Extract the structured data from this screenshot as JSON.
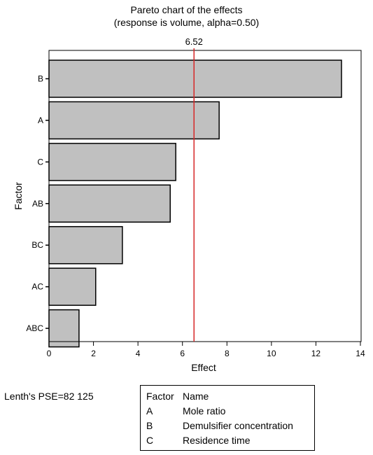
{
  "chart_data": {
    "type": "bar",
    "orientation": "horizontal",
    "title": "Pareto chart of the effects",
    "subtitle": "(response is volume, alpha=0.50)",
    "xlabel": "Effect",
    "ylabel": "Factor",
    "categories": [
      "B",
      "A",
      "C",
      "AB",
      "BC",
      "AC",
      "ABC"
    ],
    "values": [
      13.15,
      7.65,
      5.7,
      5.45,
      3.3,
      2.1,
      1.35
    ],
    "xlim": [
      0,
      14
    ],
    "xticks": [
      0,
      2,
      4,
      6,
      8,
      10,
      12,
      14
    ],
    "reference_line": {
      "value": 6.52,
      "label": "6.52",
      "color": "#d62728"
    },
    "bar_color": "#c0c0c0",
    "grid": false
  },
  "footer": {
    "lenth_pse": "Lenth's PSE=82 125"
  },
  "legend": {
    "header_factor": "Factor",
    "header_name": "Name",
    "rows": [
      {
        "factor": "A",
        "name": "Mole ratio"
      },
      {
        "factor": "B",
        "name": "Demulsifier concentration"
      },
      {
        "factor": "C",
        "name": "Residence time"
      }
    ]
  }
}
